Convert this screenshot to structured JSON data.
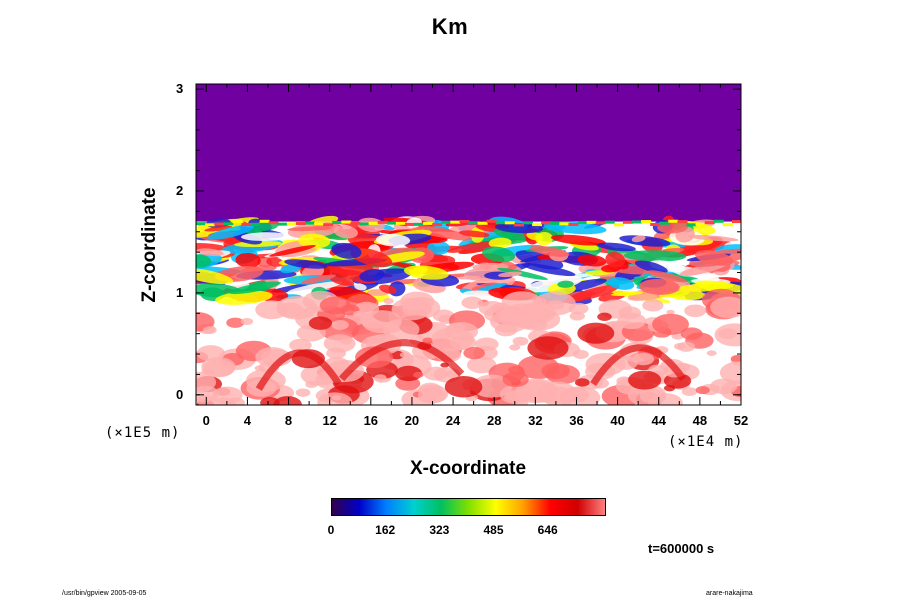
{
  "chart_data": {
    "type": "heatmap",
    "title": "Km",
    "xlabel": "X-coordinate",
    "ylabel": "Z-coordinate",
    "x_unit": "(×1E4 m)",
    "y_unit": "(×1E5 m)",
    "x_ticks": [
      0,
      4,
      8,
      12,
      16,
      20,
      24,
      28,
      32,
      36,
      40,
      44,
      48,
      52
    ],
    "y_ticks": [
      0,
      1,
      2,
      3
    ],
    "xlim": [
      -1,
      52
    ],
    "ylim": [
      -0.1,
      3.05
    ],
    "colorbar": {
      "ticks": [
        "0",
        "162",
        "323",
        "485",
        "646"
      ],
      "colors": [
        "#33004d",
        "#0000c8",
        "#0080ff",
        "#00d0d0",
        "#00c060",
        "#80e000",
        "#ffff00",
        "#ffa000",
        "#ff0000",
        "#d00000",
        "#ff8080"
      ]
    },
    "regions": [
      {
        "name": "upper-uniform",
        "z_range": [
          1.7,
          3.05
        ],
        "color": "#7000a0"
      },
      {
        "name": "active-band",
        "z_range": [
          0.95,
          1.7
        ],
        "dominant": [
          "white",
          "red",
          "green",
          "yellow",
          "cyan",
          "blue"
        ]
      },
      {
        "name": "lower-layer",
        "z_range": [
          -0.1,
          0.95
        ],
        "dominant": [
          "white",
          "pink",
          "red"
        ]
      }
    ]
  },
  "annotations": {
    "time": "t=600000 s",
    "footer_left": "/usr/bin/gpview 2005-09-05",
    "footer_right": "arare-nakajima"
  }
}
